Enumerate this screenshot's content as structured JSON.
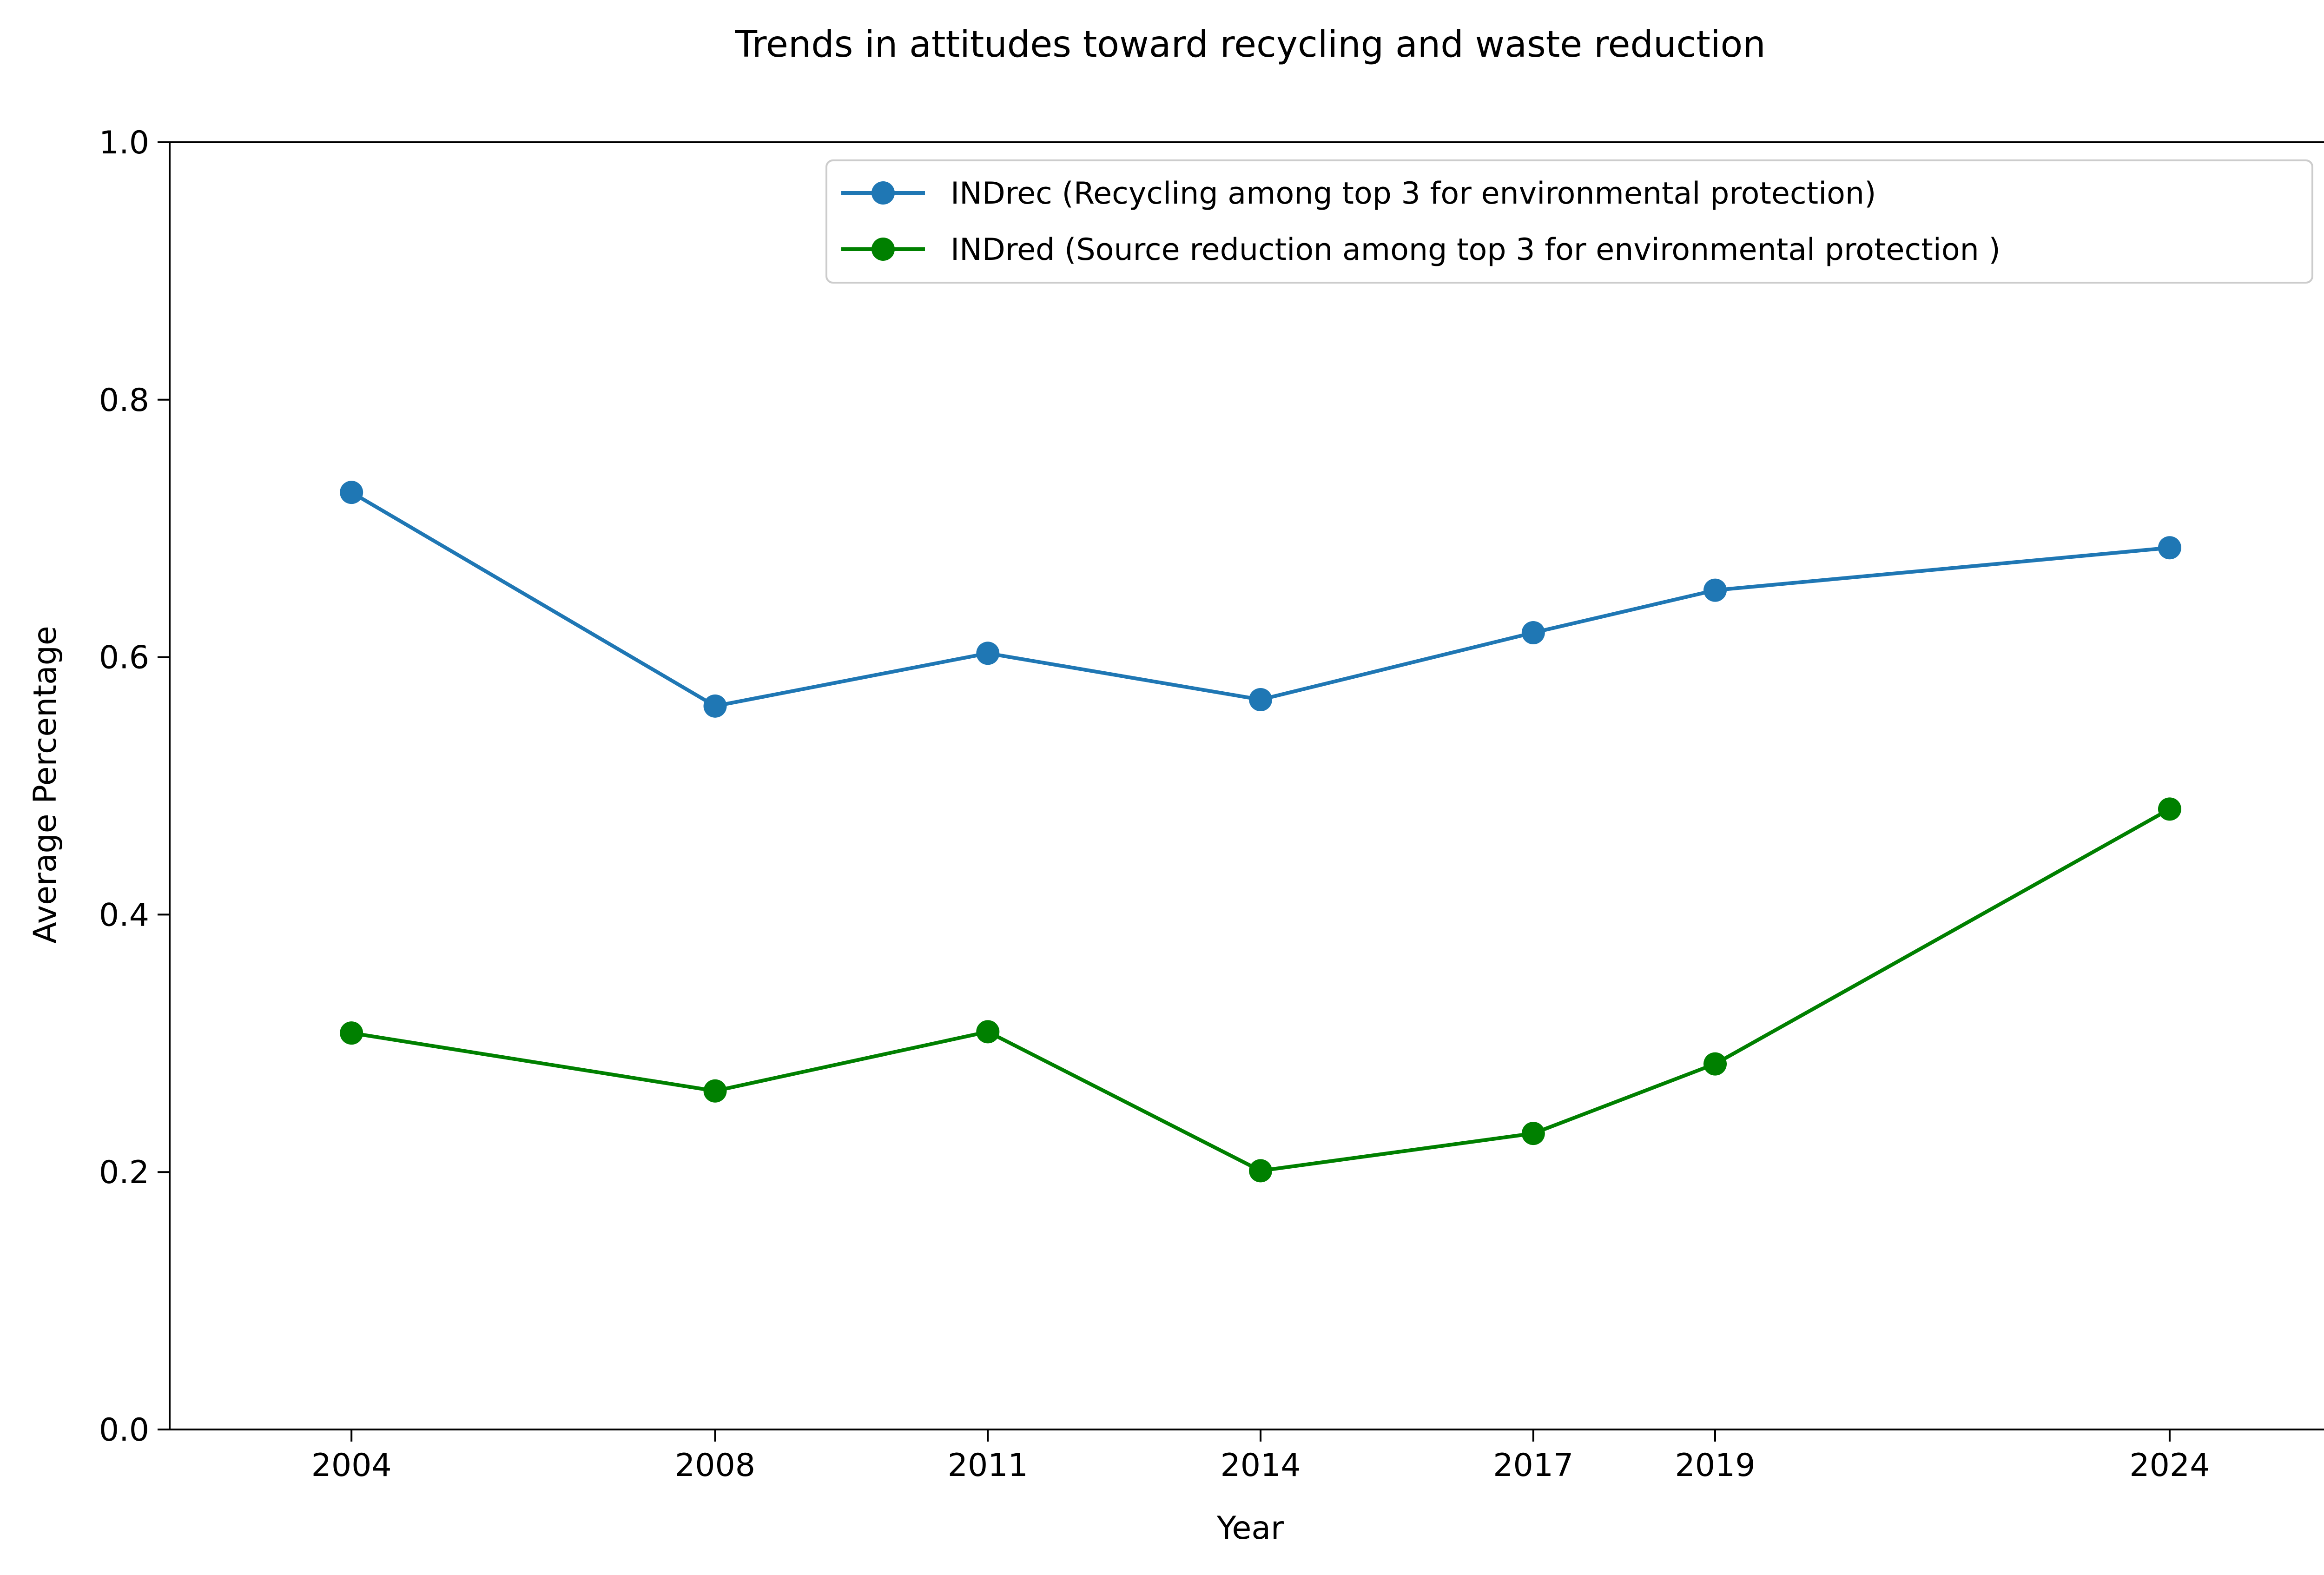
{
  "chart_data": {
    "type": "line",
    "title": "Trends in attitudes toward recycling and waste reduction",
    "xlabel": "Year",
    "ylabel": "Average Percentage",
    "x": [
      2004,
      2008,
      2011,
      2014,
      2017,
      2019,
      2024
    ],
    "xticks": [
      "2004",
      "2008",
      "2011",
      "2014",
      "2017",
      "2019",
      "2024"
    ],
    "ylim": [
      0,
      1
    ],
    "yticks": [
      "0.0",
      "0.2",
      "0.4",
      "0.6",
      "0.8",
      "1.0"
    ],
    "grid": false,
    "legend_position": "top-right",
    "series": [
      {
        "name": "INDrec (Recycling among top 3 for environmental protection)",
        "color": "#1f77b4",
        "marker": "circle",
        "values": [
          0.728,
          0.562,
          0.603,
          0.567,
          0.619,
          0.652,
          0.685
        ]
      },
      {
        "name": "INDred (Source reduction among top 3 for environmental protection )",
        "color": "#008000",
        "marker": "circle",
        "values": [
          0.308,
          0.263,
          0.309,
          0.201,
          0.23,
          0.284,
          0.482
        ]
      }
    ]
  }
}
